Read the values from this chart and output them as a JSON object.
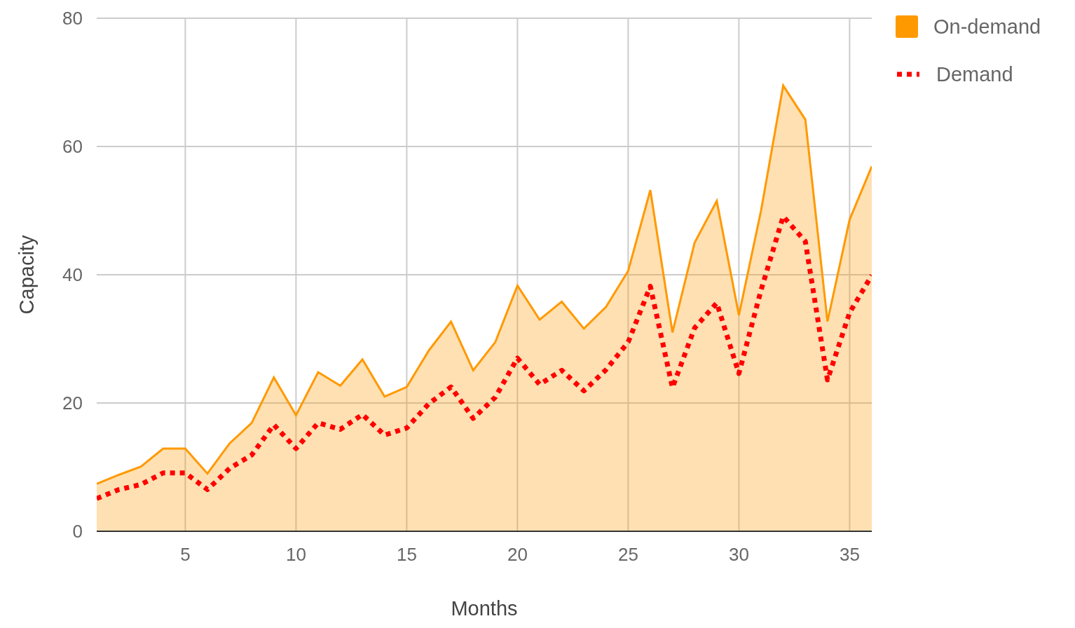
{
  "chart_data": {
    "type": "area",
    "xlabel": "Months",
    "ylabel": "Capacity",
    "x": [
      1,
      2,
      3,
      4,
      5,
      6,
      7,
      8,
      9,
      10,
      11,
      12,
      13,
      14,
      15,
      16,
      17,
      18,
      19,
      20,
      21,
      22,
      23,
      24,
      25,
      26,
      27,
      28,
      29,
      30,
      31,
      32,
      33,
      34,
      35,
      36
    ],
    "series": [
      {
        "name": "On-demand",
        "color": "#ff9900",
        "values": [
          7.4,
          8.8,
          10.1,
          12.9,
          12.9,
          9.0,
          13.7,
          16.9,
          24.0,
          18.1,
          24.8,
          22.7,
          26.8,
          21.0,
          22.5,
          28.2,
          32.7,
          25.1,
          29.5,
          38.3,
          33.0,
          35.8,
          31.6,
          35.0,
          40.6,
          53.2,
          31.0,
          45.0,
          51.5,
          33.7,
          50.0,
          69.5,
          64.2,
          32.7,
          48.6,
          56.9
        ]
      },
      {
        "name": "Demand",
        "type": "line",
        "color": "#ff0000",
        "line_style": "dotted",
        "values": [
          5.1,
          6.5,
          7.3,
          9.1,
          9.1,
          6.5,
          9.8,
          11.9,
          16.6,
          12.9,
          16.9,
          15.9,
          18.2,
          15.0,
          16.1,
          19.9,
          22.5,
          17.6,
          20.9,
          27.0,
          22.9,
          25.1,
          21.9,
          25.2,
          29.5,
          38.2,
          22.4,
          31.7,
          35.6,
          24.6,
          37.6,
          49.1,
          45.2,
          23.6,
          34.1,
          39.9
        ]
      }
    ],
    "xlim": [
      1,
      36
    ],
    "xticks": [
      5,
      10,
      15,
      20,
      25,
      30,
      35
    ],
    "ylim": [
      0,
      80
    ],
    "yticks": [
      0,
      20,
      40,
      60,
      80
    ],
    "grid": true,
    "legend": "top right"
  }
}
